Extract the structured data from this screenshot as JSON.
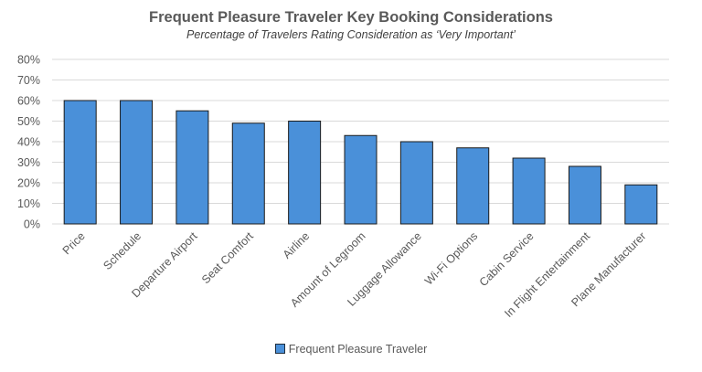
{
  "chart_data": {
    "type": "bar",
    "title": "Frequent Pleasure Traveler Key Booking Considerations",
    "subtitle": "Percentage of Travelers Rating Consideration as ‘Very Important’",
    "xlabel": "",
    "ylabel": "",
    "ylim": [
      0,
      80
    ],
    "yticks": [
      "0%",
      "10%",
      "20%",
      "30%",
      "40%",
      "50%",
      "60%",
      "70%",
      "80%"
    ],
    "grid": true,
    "legend_position": "bottom",
    "categories": [
      "Price",
      "Schedule",
      "Departure Airport",
      "Seat Comfort",
      "Airline",
      "Amount of Legroom",
      "Luggage Allowance",
      "Wi-Fi Options",
      "Cabin Service",
      "In Flight Entertainment",
      "Plane Manufacturer"
    ],
    "series": [
      {
        "name": "Frequent Pleasure Traveler",
        "values": [
          60,
          60,
          55,
          49,
          50,
          43,
          40,
          37,
          32,
          28,
          19
        ],
        "color": "#4a90d9"
      }
    ]
  }
}
